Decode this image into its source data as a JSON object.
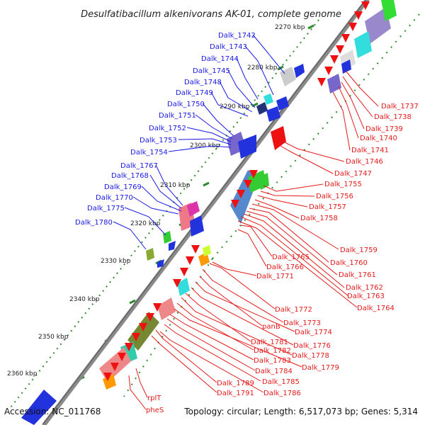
{
  "title": "Desulfatibacillum alkenivorans AK-01, complete genome",
  "accession": "Accession: NC_011768",
  "topology": "Topology: circular; Length: 6,517,073 bp; Genes: 5,314",
  "colors": {
    "forward_label": "#1a1ae6",
    "reverse_label": "#e61a1a",
    "backbone": "#8a8a8a",
    "tick": "#2e8b2e"
  },
  "kbp_ticks": [
    "2270 kbp",
    "2280 kbp",
    "2290 kbp",
    "2300 kbp",
    "2310 kbp",
    "2320 kbp",
    "2330 kbp",
    "2340 kbp",
    "2350 kbp",
    "2360 kbp"
  ],
  "forward_genes": [
    "Dalk_1742",
    "Dalk_1743",
    "Dalk_1744",
    "Dalk_1745",
    "Dalk_1748",
    "Dalk_1749",
    "Dalk_1750",
    "Dalk_1751",
    "Dalk_1752",
    "Dalk_1753",
    "Dalk_1754",
    "Dalk_1767",
    "Dalk_1768",
    "Dalk_1769",
    "Dalk_1770",
    "Dalk_1775",
    "Dalk_1780"
  ],
  "reverse_genes": [
    "Dalk_1737",
    "Dalk_1738",
    "Dalk_1739",
    "Dalk_1740",
    "Dalk_1741",
    "Dalk_1746",
    "Dalk_1747",
    "Dalk_1755",
    "Dalk_1756",
    "Dalk_1757",
    "Dalk_1758",
    "Dalk_1759",
    "Dalk_1760",
    "Dalk_1761",
    "Dalk_1762",
    "Dalk_1763",
    "Dalk_1764",
    "Dalk_1765",
    "Dalk_1766",
    "Dalk_1771",
    "Dalk_1772",
    "Dalk_1773",
    "panB",
    "Dalk_1774",
    "Dalk_1776",
    "Dalk_1781",
    "Dalk_1778",
    "Dalk_1782",
    "Dalk_1779",
    "Dalk_1783",
    "Dalk_1784",
    "Dalk_1785",
    "Dalk_1789",
    "Dalk_1786",
    "Dalk_1791",
    "rplT",
    "pheS"
  ]
}
